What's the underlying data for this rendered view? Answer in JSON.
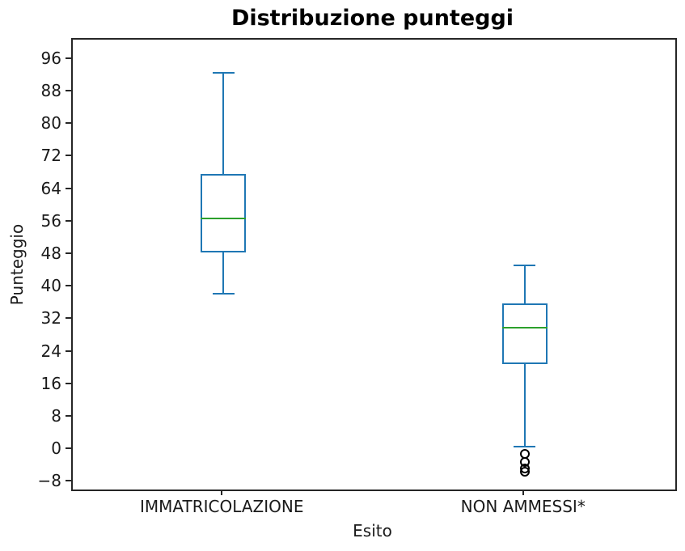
{
  "title": "Distribuzione punteggi",
  "chart_data": {
    "type": "boxplot",
    "title": "Distribuzione punteggi",
    "xlabel": "Esito",
    "ylabel": "Punteggio",
    "categories": [
      "IMMATRICOLAZIONE",
      "NON AMMESSI*"
    ],
    "yticks": [
      96,
      88,
      80,
      72,
      64,
      56,
      48,
      40,
      32,
      24,
      16,
      8,
      0,
      -8
    ],
    "ylim": [
      -9.7,
      100.9
    ],
    "grid": false,
    "legend": "none",
    "series": [
      {
        "name": "IMMATRICOLAZIONE",
        "whisker_low": 38.4,
        "q1": 48.5,
        "median": 57.0,
        "q3": 67.8,
        "whisker_high": 92.8,
        "outliers": []
      },
      {
        "name": "NON AMMESSI*",
        "whisker_low": 0.8,
        "q1": 21.2,
        "median": 30.0,
        "q3": 36.0,
        "whisker_high": 45.4,
        "outliers": [
          -1.0,
          -3.0,
          -4.5,
          -5.3
        ]
      }
    ],
    "colors": {
      "box": "#1f77b4",
      "median": "#2ca02c",
      "outlier": "#000000",
      "axis": "#262626"
    }
  }
}
